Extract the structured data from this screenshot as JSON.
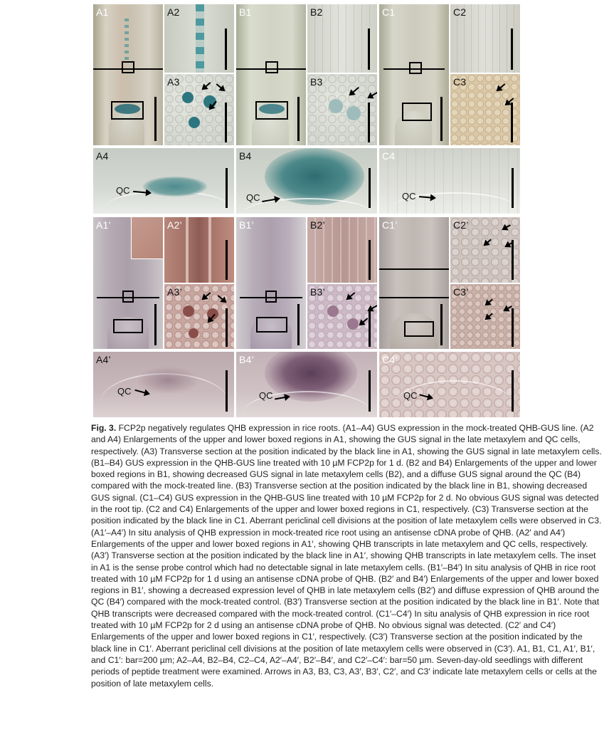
{
  "figure": {
    "labels": {
      "A1": "A1",
      "A2": "A2",
      "A3": "A3",
      "B1": "B1",
      "B2": "B2",
      "B3": "B3",
      "C1": "C1",
      "C2": "C2",
      "C3": "C3",
      "A4": "A4",
      "B4": "B4",
      "C4": "C4",
      "A1p": "A1’",
      "A2p": "A2’",
      "A3p": "A3’",
      "B1p": "B1’",
      "B2p": "B2’",
      "B3p": "B3’",
      "C1p": "C1’",
      "C2p": "C2’",
      "C3p": "C3’",
      "A4p": "A4’",
      "B4p": "B4’",
      "C4p": "C4’"
    },
    "qc_label": "QC",
    "colors": {
      "gus_blue": "#2f7a7f",
      "insitu_purple": "#6a4a66",
      "tissue_light": "#d8d6cf",
      "tissue_pink": "#cdb6b4"
    }
  },
  "caption": {
    "fig_label": "Fig. 3.",
    "text": "FCP2p negatively regulates QHB expression in rice roots. (A1–A4) GUS expression in the mock-treated QHB-GUS line. (A2 and A4) Enlargements of the upper and lower boxed regions in A1, showing the GUS signal in the late metaxylem and QC cells, respectively. (A3) Transverse section at the position indicated by the black line in A1, showing the GUS signal in late metaxylem cells. (B1–B4) GUS expression in the QHB-GUS line treated with 10 µM FCP2p for 1 d. (B2 and B4) Enlargements of the upper and lower boxed regions in B1, showing decreased GUS signal in late metaxylem cells (B2), and a diffuse GUS signal around the QC (B4) compared with the mock-treated line. (B3) Transverse section at the position indicated by the black line in B1, showing decreased GUS signal. (C1–C4) GUS expression in the QHB-GUS line treated with 10 µM FCP2p for 2 d. No obvious GUS signal was detected in the root tip. (C2 and C4) Enlargements of the upper and lower boxed regions in C1, respectively. (C3) Transverse section at the position indicated by the black line in C1. Aberrant periclinal cell divisions at the position of late metaxylem cells were observed in C3. (A1′–A4′) In situ analysis of QHB expression in mock-treated rice root using an antisense cDNA probe of QHB. (A2′ and A4′) Enlargements of the upper and lower boxed regions in A1′, showing QHB transcripts in late metaxylem and QC cells, respectively. (A3′) Transverse section at the position indicated by the black line in A1′, showing QHB transcripts in late metaxylem cells. The inset in A1 is the sense probe control which had no detectable signal in late metaxylem cells. (B1′–B4′) In situ analysis of QHB in rice root treated with 10 µM FCP2p for 1 d using an antisense cDNA probe of QHB. (B2′ and B4′) Enlargements of the upper and lower boxed regions in B1′, showing a decreased expression level of QHB in late metaxylem cells (B2′) and diffuse expression of QHB around the QC (B4′) compared with the mock-treated control. (B3′) Transverse section at the position indicated by the black line in B1′. Note that QHB transcripts were decreased compared with the mock-treated control. (C1′–C4′) In situ analysis of QHB expression in rice root treated with 10 µM FCP2p for 2 d using an antisense cDNA probe of QHB. No obvious signal was detected. (C2′ and C4′) Enlargements of the upper and lower boxed regions in C1′, respectively. (C3′) Transverse section at the position indicated by the black line in C1′. Aberrant periclinal cell divisions at the position of late metaxylem cells were observed in (C3′). A1, B1, C1, A1′, B1′, and C1′: bar=200 µm; A2–A4, B2–B4, C2–C4, A2′–A4′, B2′–B4′, and C2′–C4′: bar=50 µm. Seven-day-old seedlings with different periods of peptide treatment were examined. Arrows in A3, B3, C3, A3′, B3′, C2′, and C3′ indicate late metaxylem cells or cells at the position of late metaxylem cells."
  }
}
